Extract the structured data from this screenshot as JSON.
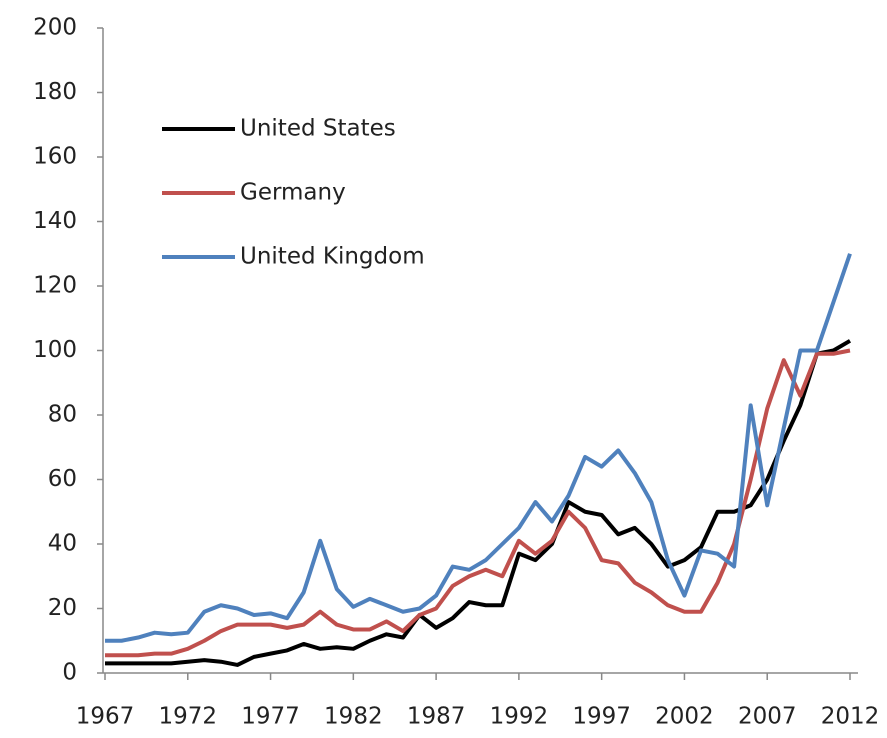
{
  "chart_data": {
    "type": "line",
    "x": [
      1967,
      1968,
      1969,
      1970,
      1971,
      1972,
      1973,
      1974,
      1975,
      1976,
      1977,
      1978,
      1979,
      1980,
      1981,
      1982,
      1983,
      1984,
      1985,
      1986,
      1987,
      1988,
      1989,
      1990,
      1991,
      1992,
      1993,
      1994,
      1995,
      1996,
      1997,
      1998,
      1999,
      2000,
      2001,
      2002,
      2003,
      2004,
      2005,
      2006,
      2007,
      2008,
      2009,
      2010,
      2011,
      2012
    ],
    "series": [
      {
        "name": "United States",
        "color": "#000000",
        "values": [
          3,
          3,
          3,
          3,
          3,
          3.5,
          4,
          3.5,
          2.5,
          5,
          6,
          7,
          9,
          7.5,
          8,
          7.5,
          10,
          12,
          11,
          18,
          14,
          17,
          22,
          21,
          21,
          37,
          35,
          40,
          53,
          50,
          49,
          43,
          45,
          40,
          33,
          35,
          39,
          50,
          50,
          52,
          60,
          72,
          83,
          99,
          100,
          103
        ]
      },
      {
        "name": "Germany",
        "color": "#c0504d",
        "values": [
          5.5,
          5.5,
          5.5,
          6,
          6,
          7.5,
          10,
          13,
          15,
          15,
          15,
          14,
          15,
          19,
          15,
          13.5,
          13.5,
          16,
          13,
          18,
          20,
          27,
          30,
          32,
          30,
          41,
          37,
          41,
          50,
          45,
          35,
          34,
          28,
          25,
          21,
          19,
          19,
          28,
          40,
          60,
          82,
          97,
          86,
          99,
          99,
          100
        ]
      },
      {
        "name": "United Kingdom",
        "color": "#4f81bd",
        "values": [
          10,
          10,
          11,
          12.5,
          12,
          12.5,
          19,
          21,
          20,
          18,
          18.5,
          17,
          25,
          41,
          26,
          20.5,
          23,
          21,
          19,
          20,
          24,
          33,
          32,
          35,
          40,
          45,
          53,
          47,
          55,
          67,
          64,
          69,
          62,
          53,
          35,
          24,
          38,
          37,
          33,
          83,
          52,
          76,
          100,
          100,
          115,
          130
        ]
      }
    ],
    "xlim": [
      1967,
      2012
    ],
    "xticks": [
      1967,
      1972,
      1977,
      1982,
      1987,
      1992,
      1997,
      2002,
      2007,
      2012
    ],
    "ylim": [
      0,
      200
    ],
    "yticks": [
      0,
      20,
      40,
      60,
      80,
      100,
      120,
      140,
      160,
      180,
      200
    ],
    "grid": false,
    "legend": "top-left"
  }
}
